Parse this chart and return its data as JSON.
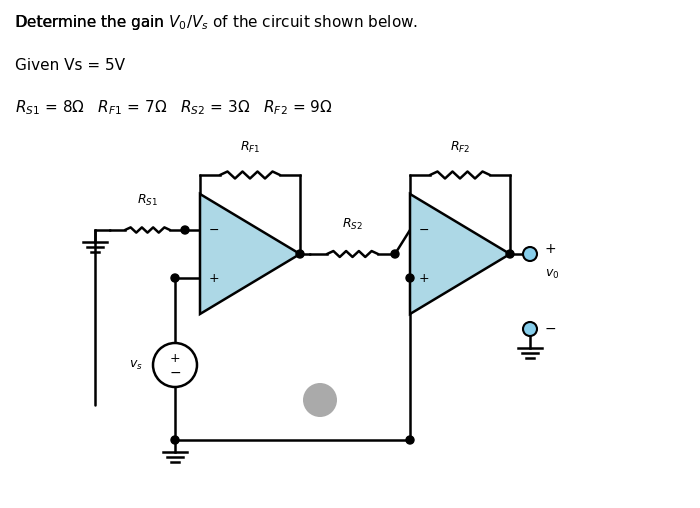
{
  "bg_color": "#ffffff",
  "circuit_color": "#000000",
  "opamp_fill": "#add8e6",
  "opamp_edge": "#000000",
  "text_color": "#000000",
  "terminal_fill": "#87ceeb"
}
